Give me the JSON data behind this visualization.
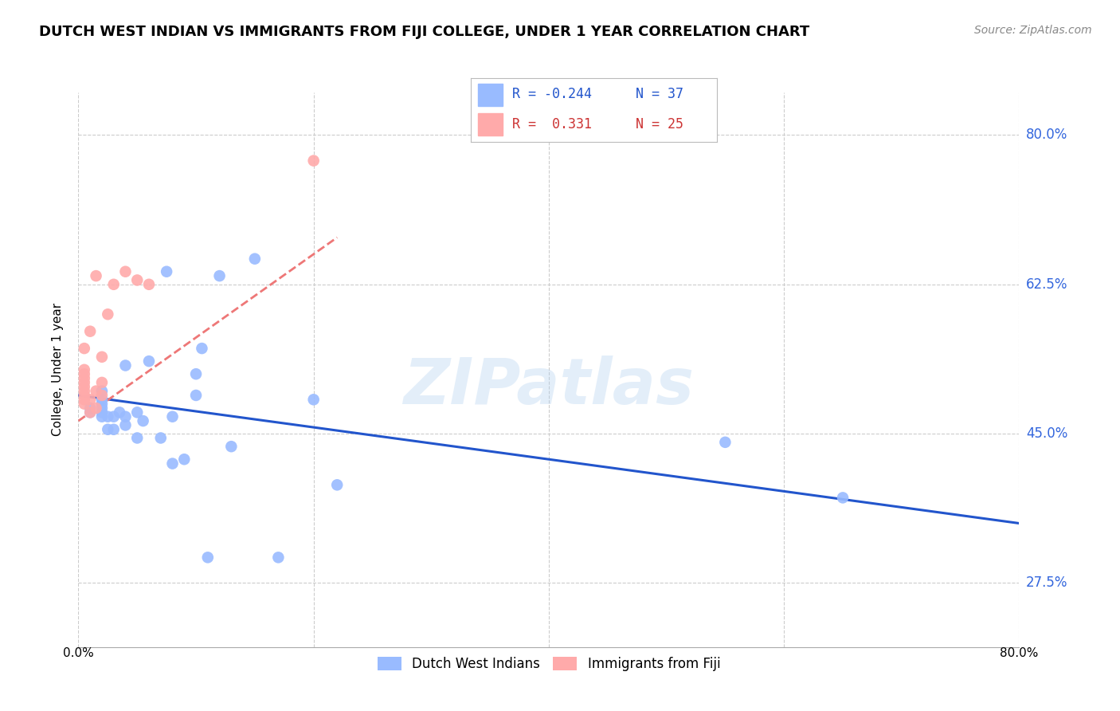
{
  "title": "DUTCH WEST INDIAN VS IMMIGRANTS FROM FIJI COLLEGE, UNDER 1 YEAR CORRELATION CHART",
  "source": "Source: ZipAtlas.com",
  "ylabel": "College, Under 1 year",
  "legend_R1": "-0.244",
  "legend_N1": "37",
  "legend_R2": "0.331",
  "legend_N2": "25",
  "blue_color": "#99BBFF",
  "pink_color": "#FFAAAA",
  "blue_line_color": "#2255CC",
  "pink_line_color": "#EE7777",
  "watermark_text": "ZIPatlas",
  "xlim": [
    0.0,
    0.8
  ],
  "ylim": [
    0.2,
    0.85
  ],
  "yticks": [
    0.275,
    0.45,
    0.625,
    0.8
  ],
  "ytick_labels": [
    "27.5%",
    "45.0%",
    "62.5%",
    "80.0%"
  ],
  "xticks": [
    0.0,
    0.2,
    0.4,
    0.6,
    0.8
  ],
  "dutch_x": [
    0.01,
    0.01,
    0.02,
    0.02,
    0.02,
    0.02,
    0.02,
    0.02,
    0.025,
    0.025,
    0.03,
    0.03,
    0.035,
    0.04,
    0.04,
    0.04,
    0.05,
    0.05,
    0.055,
    0.06,
    0.07,
    0.075,
    0.08,
    0.08,
    0.09,
    0.1,
    0.1,
    0.105,
    0.11,
    0.12,
    0.13,
    0.15,
    0.17,
    0.2,
    0.22,
    0.55,
    0.65
  ],
  "dutch_y": [
    0.475,
    0.48,
    0.47,
    0.475,
    0.48,
    0.485,
    0.49,
    0.5,
    0.455,
    0.47,
    0.455,
    0.47,
    0.475,
    0.46,
    0.47,
    0.53,
    0.445,
    0.475,
    0.465,
    0.535,
    0.445,
    0.64,
    0.415,
    0.47,
    0.42,
    0.495,
    0.52,
    0.55,
    0.305,
    0.635,
    0.435,
    0.655,
    0.305,
    0.49,
    0.39,
    0.44,
    0.375
  ],
  "fiji_x": [
    0.005,
    0.005,
    0.005,
    0.005,
    0.005,
    0.005,
    0.005,
    0.005,
    0.005,
    0.005,
    0.01,
    0.01,
    0.01,
    0.015,
    0.015,
    0.015,
    0.02,
    0.02,
    0.02,
    0.025,
    0.03,
    0.04,
    0.05,
    0.06,
    0.2
  ],
  "fiji_y": [
    0.485,
    0.49,
    0.495,
    0.5,
    0.505,
    0.51,
    0.515,
    0.52,
    0.525,
    0.55,
    0.475,
    0.49,
    0.57,
    0.48,
    0.5,
    0.635,
    0.495,
    0.51,
    0.54,
    0.59,
    0.625,
    0.64,
    0.63,
    0.625,
    0.77
  ],
  "blue_line_x": [
    0.0,
    0.8
  ],
  "blue_line_y": [
    0.495,
    0.345
  ],
  "pink_line_x": [
    0.0,
    0.22
  ],
  "pink_line_y": [
    0.465,
    0.68
  ]
}
